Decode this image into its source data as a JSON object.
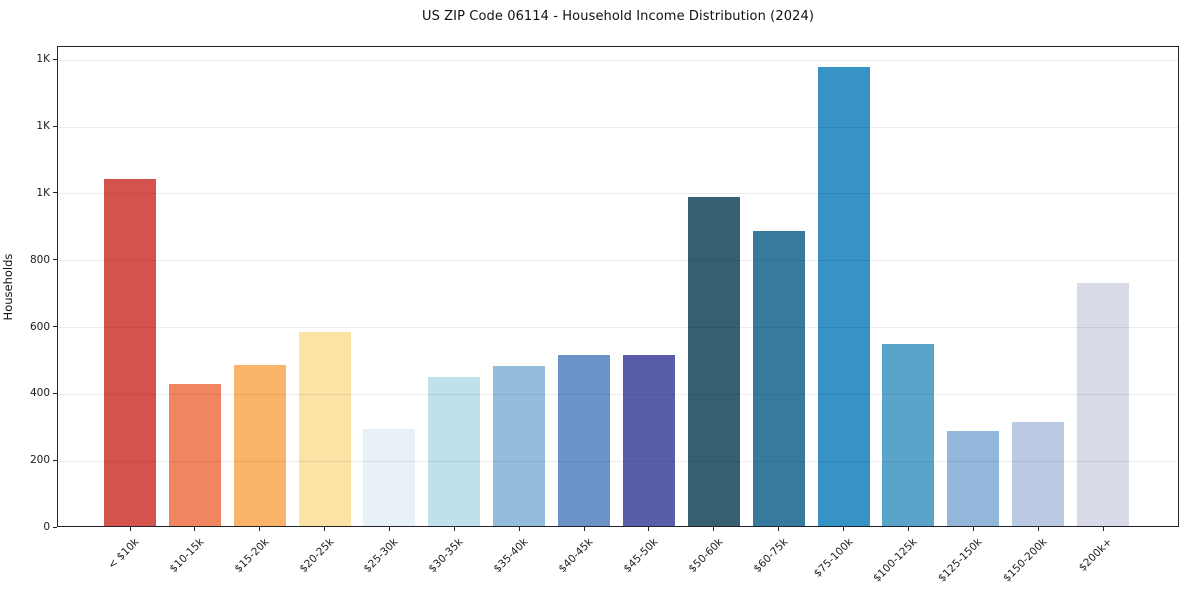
{
  "chart_data": {
    "type": "bar",
    "title": "US ZIP Code 06114 - Household Income Distribution (2024)",
    "ylabel": "Households",
    "xlabel": "",
    "categories": [
      "< $10k",
      "$10-15k",
      "$15-20k",
      "$20-25k",
      "$25-30k",
      "$30-35k",
      "$35-40k",
      "$40-45k",
      "$45-50k",
      "$50-60k",
      "$60-75k",
      "$75-100k",
      "$100-125k",
      "$125-150k",
      "$150-200k",
      "$200k+"
    ],
    "values": [
      1040,
      426,
      482,
      581,
      290,
      447,
      480,
      513,
      512,
      986,
      884,
      1375,
      546,
      284,
      310,
      728
    ],
    "bar_colors": [
      "#d5534d",
      "#f0865f",
      "#f9b469",
      "#fce3a5",
      "#e8f2f6",
      "#c0e0ec",
      "#93bdda",
      "#6b93c8",
      "#5a5ea9",
      "#366070",
      "#38799e",
      "#3792c5",
      "#5ba4c9",
      "#92b7da",
      "#b9cae2",
      "#d8dae8"
    ],
    "yticks": {
      "values": [
        0,
        200,
        400,
        600,
        800,
        1000,
        1200,
        1400
      ],
      "labels": [
        "0",
        "200",
        "400",
        "600",
        "800",
        "1K",
        "1K",
        "1K"
      ]
    },
    "ylim": [
      0,
      1440
    ],
    "grid": "horizontal-only",
    "legend": "none",
    "background_color": "#ffffff",
    "spine_color": "#23232e"
  }
}
